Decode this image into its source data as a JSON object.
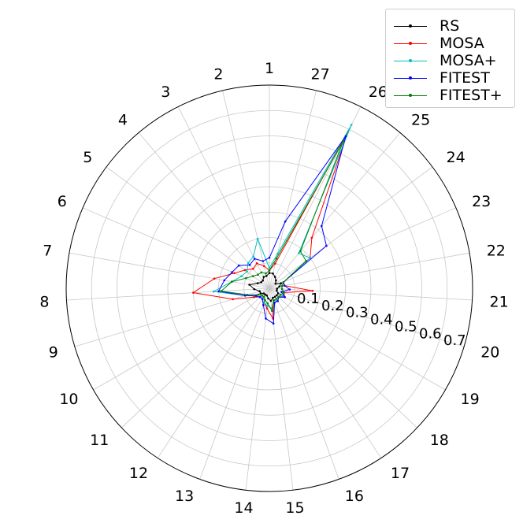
{
  "chart_data": {
    "type": "radar",
    "categories": [
      "1",
      "2",
      "3",
      "4",
      "5",
      "6",
      "7",
      "8",
      "9",
      "10",
      "11",
      "12",
      "13",
      "14",
      "15",
      "16",
      "17",
      "18",
      "19",
      "20",
      "21",
      "22",
      "23",
      "24",
      "25",
      "26",
      "27"
    ],
    "radial_ticks": [
      "0.1",
      "0.2",
      "0.3",
      "0.4",
      "0.5",
      "0.6",
      "0.7"
    ],
    "rlim": [
      0,
      0.8
    ],
    "grid": true,
    "legend_position": "top-right",
    "series": [
      {
        "name": "RS",
        "color": "#000000",
        "values": [
          0.06,
          0.05,
          0.05,
          0.04,
          0.04,
          0.05,
          0.08,
          0.06,
          0.04,
          0.04,
          0.03,
          0.03,
          0.03,
          0.04,
          0.05,
          0.04,
          0.04,
          0.04,
          0.04,
          0.03,
          0.03,
          0.04,
          0.05,
          0.03,
          0.04,
          0.05,
          0.06
        ]
      },
      {
        "name": "MOSA",
        "color": "#ff0000",
        "values": [
          0.07,
          0.09,
          0.11,
          0.1,
          0.12,
          0.15,
          0.22,
          0.3,
          0.15,
          0.07,
          0.05,
          0.04,
          0.06,
          0.08,
          0.12,
          0.05,
          0.06,
          0.05,
          0.07,
          0.06,
          0.17,
          0.06,
          0.06,
          0.2,
          0.26,
          0.69,
          0.1
        ]
      },
      {
        "name": "MOSA+",
        "color": "#00bfbf",
        "values": [
          0.08,
          0.2,
          0.14,
          0.13,
          0.11,
          0.12,
          0.15,
          0.22,
          0.1,
          0.06,
          0.05,
          0.04,
          0.06,
          0.07,
          0.08,
          0.05,
          0.06,
          0.05,
          0.06,
          0.06,
          0.05,
          0.05,
          0.06,
          0.2,
          0.18,
          0.72,
          0.14
        ]
      },
      {
        "name": "FITEST",
        "color": "#0000ff",
        "values": [
          0.12,
          0.11,
          0.13,
          0.12,
          0.15,
          0.16,
          0.18,
          0.2,
          0.1,
          0.06,
          0.05,
          0.05,
          0.07,
          0.12,
          0.14,
          0.06,
          0.06,
          0.05,
          0.07,
          0.05,
          0.08,
          0.06,
          0.06,
          0.28,
          0.32,
          0.67,
          0.27
        ]
      },
      {
        "name": "FITEST+",
        "color": "#008000",
        "values": [
          0.07,
          0.06,
          0.07,
          0.07,
          0.08,
          0.1,
          0.15,
          0.19,
          0.09,
          0.05,
          0.04,
          0.04,
          0.05,
          0.06,
          0.09,
          0.05,
          0.05,
          0.05,
          0.05,
          0.06,
          0.05,
          0.05,
          0.06,
          0.18,
          0.19,
          0.65,
          0.12
        ]
      }
    ]
  }
}
